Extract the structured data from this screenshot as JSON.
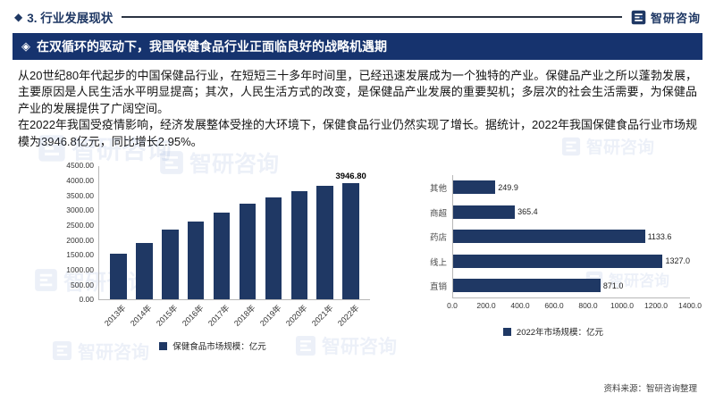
{
  "header": {
    "bullet": "◆",
    "section_title": "3. 行业发展现状",
    "brand_name": "智研咨询"
  },
  "banner": {
    "icon": "◈",
    "title": "在双循环的驱动下，我国保健食品行业正面临良好的战略机遇期"
  },
  "body": {
    "paragraph1": "从20世纪80年代起步的中国保健品行业，在短短三十多年时间里，已经迅速发展成为一个独特的产业。保健品产业之所以蓬勃发展，主要原因是人民生活水平明显提高；其次，人民生活方式的改变，是保健品产业发展的重要契机；多层次的社会生活需要，为保健品产业的发展提供了广阔空间。",
    "paragraph2": "在2022年我国受疫情影响，经济发展整体受挫的大环境下，保健食品行业仍然实现了增长。据统计，2022年我国保健食品行业市场规模为3946.8亿元，同比增长2.95%。"
  },
  "chart_data": [
    {
      "type": "bar",
      "title": "",
      "categories": [
        "2013年",
        "2014年",
        "2015年",
        "2016年",
        "2017年",
        "2018年",
        "2019年",
        "2020年",
        "2021年",
        "2022年"
      ],
      "values": [
        1550,
        1900,
        2350,
        2650,
        2950,
        3250,
        3450,
        3650,
        3830,
        3946.8
      ],
      "last_value_label": "3946.80",
      "ylim": [
        0,
        4500
      ],
      "ytick_labels": [
        "0.00",
        "500.00",
        "1000.00",
        "1500.00",
        "2000.00",
        "2500.00",
        "3000.00",
        "3500.00",
        "4000.00",
        "4500.00"
      ],
      "xlabel": "",
      "ylabel": "",
      "grid": false,
      "legend": "保健食品市场规模：亿元",
      "legend_position": "bottom",
      "bar_color": "#1f3864"
    },
    {
      "type": "bar",
      "orientation": "horizontal",
      "title": "",
      "categories": [
        "其他",
        "商超",
        "药店",
        "线上",
        "直销"
      ],
      "values": [
        249.9,
        365.4,
        1133.6,
        1327.0,
        871.0
      ],
      "value_labels": [
        "249.9",
        "365.4",
        "1133.6",
        "1327.0",
        "871.0"
      ],
      "xlim": [
        0,
        1400
      ],
      "xtick_labels": [
        "0.0",
        "200.0",
        "400.0",
        "600.0",
        "800.0",
        "1000.0",
        "1200.0",
        "1400.0"
      ],
      "xlabel": "",
      "ylabel": "",
      "grid": false,
      "legend": "2022年市场规模：亿元",
      "legend_position": "bottom",
      "bar_color": "#1f3864"
    }
  ],
  "footer": {
    "source": "资料来源：智研咨询整理"
  },
  "watermark": {
    "text": "智研咨询"
  },
  "colors": {
    "navy": "#1f3864",
    "banner_bg": "#16336e",
    "watermark": "#5b7fc4"
  }
}
